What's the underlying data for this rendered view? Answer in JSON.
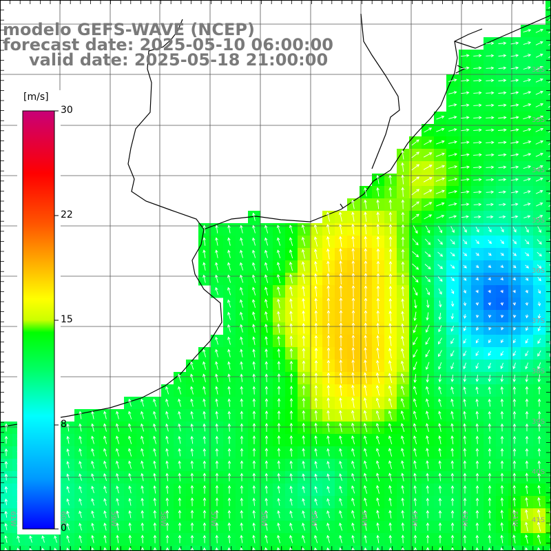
{
  "title": {
    "line1": "modelo GEFS-WAVE (NCEP)",
    "line2": "forecast date: 2025-05-10 06:00:00",
    "line3": "valid date: 2025-05-18 21:00:00"
  },
  "colorbar": {
    "unit": "[m/s]",
    "ticks": [
      "30",
      "22",
      "15",
      "8",
      "0"
    ]
  },
  "axes": {
    "lat_labels": [
      "32S",
      "33S",
      "34S",
      "35S",
      "36S",
      "37S",
      "38S",
      "39S",
      "40S",
      "41S"
    ],
    "lon_labels": [
      "61W",
      "60W",
      "59W",
      "58W",
      "57W",
      "56W",
      "55W",
      "54W",
      "53W",
      "52W",
      "51W"
    ]
  },
  "field": {
    "variable": "wind speed",
    "units": "m/s",
    "range": [
      0,
      30
    ]
  }
}
